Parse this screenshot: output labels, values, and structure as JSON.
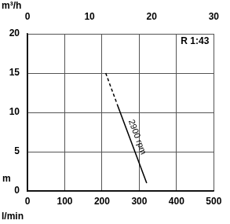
{
  "chart_data": {
    "type": "line",
    "title": "R 1:43",
    "x_label": "l/min",
    "y_label": "m",
    "x2_label": "m³/h",
    "x": [
      210,
      241,
      320
    ],
    "series": [
      {
        "values": [
          15,
          11,
          null
        ],
        "line_style": "dashed",
        "color": "#000000"
      },
      {
        "values": [
          null,
          11,
          1
        ],
        "line_style": "solid",
        "color": "#000000"
      }
    ],
    "xlim": [
      0,
      500
    ],
    "xticks": [
      0,
      100,
      200,
      300,
      400,
      500
    ],
    "x2lim": [
      0,
      30
    ],
    "x2ticks": [
      0,
      10,
      20,
      30
    ],
    "ylim": [
      0,
      20
    ],
    "yticks": [
      0,
      5,
      10,
      15,
      20
    ],
    "grid": true,
    "annotations": [
      {
        "text": "2900 rpm"
      }
    ]
  }
}
